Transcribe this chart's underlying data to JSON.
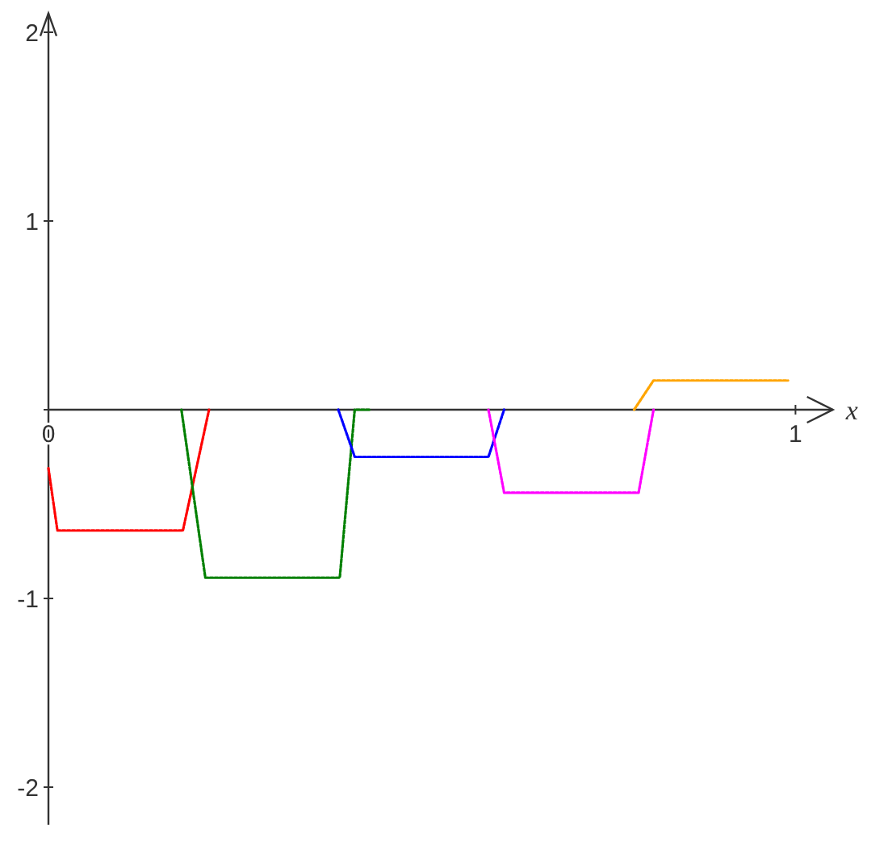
{
  "chart_data": {
    "type": "line",
    "xlabel": "x",
    "xlim": [
      0,
      1.05
    ],
    "ylim": [
      -2.2,
      2.1
    ],
    "xticks": [
      0,
      1
    ],
    "yticks": [
      -2,
      -1,
      {
        "value": 0,
        "label": null
      },
      1,
      2
    ],
    "grid": false,
    "marker": "none",
    "line_style": "dashed",
    "series": [
      {
        "color": "#ff0000",
        "x": [
          0,
          0.012,
          0.18,
          0.215
        ],
        "values": [
          -0.31,
          -0.64,
          -0.64,
          0
        ]
      },
      {
        "color": "#008000",
        "x": [
          0.178,
          0.21,
          0.39,
          0.41,
          0.43
        ],
        "values": [
          0,
          -0.89,
          -0.89,
          0,
          0
        ]
      },
      {
        "color": "#0000ff",
        "x": [
          0.388,
          0.41,
          0.589,
          0.61
        ],
        "values": [
          0,
          -0.25,
          -0.25,
          0
        ]
      },
      {
        "color": "#ff00ff",
        "x": [
          0.589,
          0.61,
          0.79,
          0.81
        ],
        "values": [
          0,
          -0.44,
          -0.44,
          0
        ]
      },
      {
        "color": "#ffa500",
        "x": [
          0.784,
          0.81,
          0.99
        ],
        "values": [
          0,
          0.155,
          0.155
        ]
      }
    ]
  }
}
